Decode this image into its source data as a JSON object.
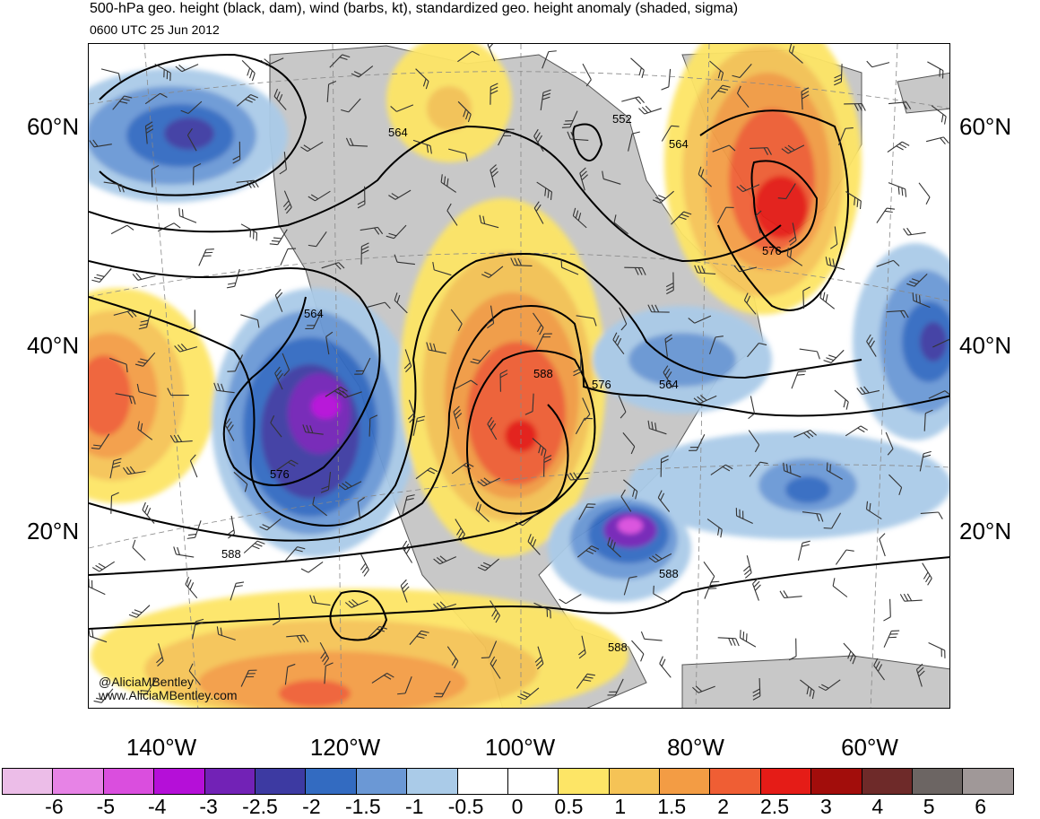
{
  "header": {
    "title": "500-hPa geo. height (black, dam), wind (barbs, kt), standardized geo. height anomaly (shaded, sigma)",
    "valid_time": "0600 UTC 25 Jun 2012"
  },
  "map": {
    "latitude_labels": [
      "60°N",
      "40°N",
      "20°N"
    ],
    "longitude_labels": [
      "140°W",
      "120°W",
      "100°W",
      "80°W",
      "60°W"
    ],
    "height_contour_labels": [
      "552",
      "564",
      "564",
      "564",
      "564",
      "576",
      "576",
      "576",
      "588",
      "588",
      "588",
      "588"
    ],
    "credit": {
      "handle": "@AliciaMBentley",
      "website": "www.AliciaMBentley.com"
    }
  },
  "colorbar": {
    "colors": [
      "#ecbde8",
      "#e783e6",
      "#da4ede",
      "#b50fd8",
      "#7222b6",
      "#3d3aa2",
      "#336bc1",
      "#6b98d5",
      "#aacbe8",
      "#ffffff",
      "#ffffff",
      "#fde566",
      "#f5c356",
      "#f39c44",
      "#ef5e34",
      "#e51c17",
      "#a20d0b",
      "#6e2a29",
      "#6c6563",
      "#a09898"
    ],
    "tick_labels": [
      "-6",
      "-5",
      "-4",
      "-3",
      "-2.5",
      "-2",
      "-1.5",
      "-1",
      "-0.5",
      "0",
      "0.5",
      "1",
      "1.5",
      "2",
      "2.5",
      "3",
      "4",
      "5",
      "6"
    ]
  }
}
